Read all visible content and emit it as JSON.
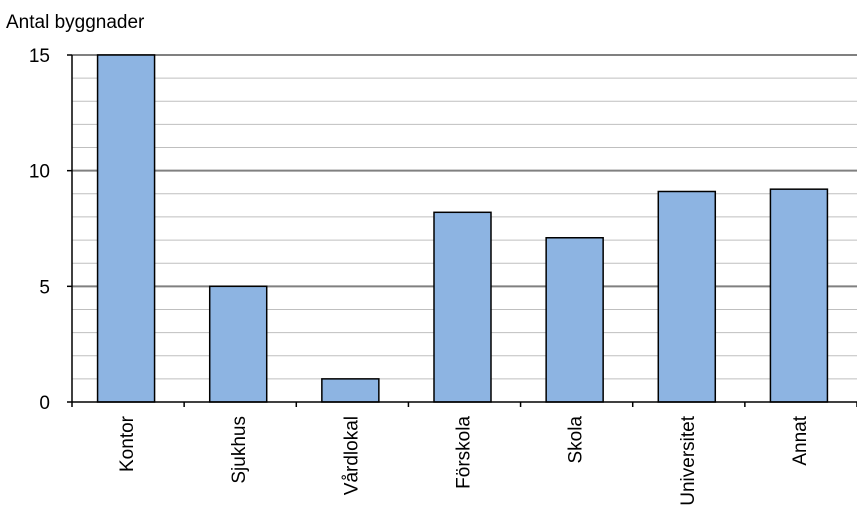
{
  "chart_data": {
    "type": "bar",
    "ylabel": "Antal byggnader",
    "xlabel": "",
    "title": "",
    "categories": [
      "Kontor",
      "Sjukhus",
      "Vårdlokal",
      "Förskola",
      "Skola",
      "Universitet",
      "Annat"
    ],
    "values": [
      15,
      5,
      1,
      8.2,
      7.1,
      9.1,
      9.2
    ],
    "ylim": [
      0,
      15
    ],
    "yticks": [
      0,
      5,
      10,
      15
    ],
    "grid": true,
    "bar_color": "#8DB4E2",
    "bar_edge_color": "#000000",
    "grid_major_color": "#808080",
    "grid_minor_color": "#BFBFBF"
  }
}
